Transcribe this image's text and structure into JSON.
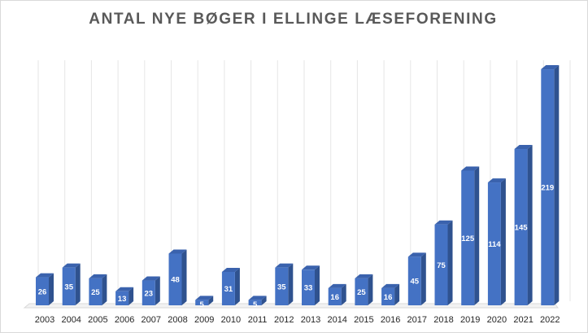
{
  "chart_data": {
    "type": "bar",
    "title": "ANTAL NYE BØGER I ELLINGE LÆSEFORENING",
    "xlabel": "",
    "ylabel": "",
    "categories": [
      "2003",
      "2004",
      "2005",
      "2006",
      "2007",
      "2008",
      "2009",
      "2010",
      "2011",
      "2012",
      "2013",
      "2014",
      "2015",
      "2016",
      "2017",
      "2018",
      "2019",
      "2020",
      "2021",
      "2022"
    ],
    "values": [
      26,
      35,
      25,
      13,
      23,
      48,
      5,
      31,
      5,
      35,
      33,
      16,
      25,
      16,
      45,
      75,
      125,
      114,
      145,
      219
    ],
    "ylim": [
      0,
      250
    ],
    "grid": true,
    "legend": "none",
    "style": "3d-column",
    "bar_color": "#4472c4",
    "bar_side_color": "#2f528f",
    "bar_top_color": "#3a62ad",
    "data_label_color": "#ffffff"
  }
}
